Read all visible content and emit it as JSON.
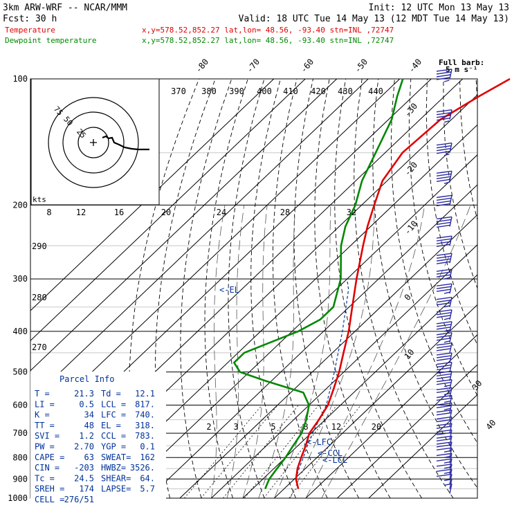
{
  "header": {
    "model": "3km ARW-WRF -- NCAR/MMM",
    "init": "Init: 12 UTC Mon 13 May 13",
    "fcst": "Fcst:    30 h",
    "valid": "Valid: 18 UTC Tue 14 May 13 (12 MDT Tue 14 May 13)",
    "temp_label": "Temperature",
    "dew_label": "Dewpoint temperature",
    "temp_loc": "x,y=578.52,852.27   lat,lon= 48.56, -93.40   stn=INL ,72747",
    "dew_loc": "x,y=578.52,852.27   lat,lon= 48.56, -93.40   stn=INL ,72747"
  },
  "colors": {
    "temperature": "#e00000",
    "dewpoint": "#008800",
    "parcel": "#003399",
    "wind": "#2a2aa0",
    "grid": "#000000"
  },
  "wind_scale": {
    "title": "Full barb:",
    "value": "5 m s⁻¹"
  },
  "hodograph": {
    "rings": [
      "75",
      "50",
      "25"
    ],
    "units": "kts",
    "origin_icon": "plus-icon"
  },
  "parcel_info": {
    "title": "Parcel Info",
    "rows": [
      {
        "a": "T   =",
        "av": "21.3",
        "b": "Td  =",
        "bv": "12.1"
      },
      {
        "a": "LI  =",
        "av": "0.5",
        "b": "LCL =",
        "bv": "817."
      },
      {
        "a": "K   =",
        "av": "34",
        "b": "LFC =",
        "bv": "740."
      },
      {
        "a": "TT  =",
        "av": "48",
        "b": "EL  =",
        "bv": "318."
      },
      {
        "a": "SVI =",
        "av": "1.2",
        "b": "CCL =",
        "bv": "783."
      },
      {
        "a": "PW  =",
        "av": "2.70",
        "b": "YGP =",
        "bv": "0.1"
      },
      {
        "a": "CAPE =",
        "av": "63",
        "b": "SWEAT=",
        "bv": "162"
      },
      {
        "a": "CIN =",
        "av": "-203",
        "b": "HWBZ=",
        "bv": "3526."
      },
      {
        "a": "Tc  =",
        "av": "24.5",
        "b": "SHEAR=",
        "bv": "64."
      },
      {
        "a": "SREH =",
        "av": "174",
        "b": "LAPSE=",
        "bv": "5.7"
      },
      {
        "a": "CELL =",
        "av": "276/51",
        "b": "",
        "bv": ""
      }
    ]
  },
  "level_labels": {
    "el": "<-EL",
    "lfc": "<-LFC",
    "ccl": "<-CCL",
    "lcl": "<-LCL"
  },
  "chart_data": {
    "type": "line",
    "chart_kind": "skew-T log-p sounding",
    "y_axis": {
      "label": "",
      "units": "hPa",
      "scale": "log",
      "range": [
        1000,
        100
      ],
      "ticks": [
        100,
        200,
        300,
        400,
        500,
        600,
        700,
        800,
        900,
        1000
      ]
    },
    "x_axis": {
      "label": "",
      "units": "°C",
      "skewed": true,
      "ticks": [
        -40,
        -30,
        -20,
        -10,
        0,
        10,
        20,
        30,
        40
      ]
    },
    "top_temp_ticks": [
      "-80",
      "-70",
      "-60",
      "-50",
      "-40"
    ],
    "theta_ticks": [
      "370",
      "380",
      "390",
      "400",
      "410",
      "420",
      "430",
      "440"
    ],
    "hodo_ticks": [
      "8",
      "12",
      "16",
      "20",
      "24",
      "28",
      "32"
    ],
    "mixing_ratio_ticks": [
      "2",
      "3",
      "5",
      "8",
      "12",
      "20"
    ],
    "theta_side_labels": [
      "290",
      "280",
      "270"
    ],
    "series": [
      {
        "name": "Temperature",
        "points": [
          [
            950,
            24.5
          ],
          [
            900,
            20.5
          ],
          [
            850,
            17.5
          ],
          [
            800,
            15
          ],
          [
            750,
            12.5
          ],
          [
            700,
            9.5
          ],
          [
            650,
            8
          ],
          [
            600,
            6
          ],
          [
            550,
            2.5
          ],
          [
            500,
            -1.5
          ],
          [
            450,
            -6.5
          ],
          [
            400,
            -12
          ],
          [
            350,
            -19
          ],
          [
            300,
            -27
          ],
          [
            250,
            -36
          ],
          [
            225,
            -41
          ],
          [
            200,
            -46
          ],
          [
            175,
            -51.5
          ],
          [
            150,
            -54.5
          ],
          [
            125,
            -53.5
          ],
          [
            110,
            -49
          ],
          [
            100,
            -45
          ]
        ]
      },
      {
        "name": "Dewpoint temperature",
        "points": [
          [
            950,
            14
          ],
          [
            925,
            13
          ],
          [
            900,
            12
          ],
          [
            850,
            11
          ],
          [
            800,
            10
          ],
          [
            750,
            8.5
          ],
          [
            700,
            7
          ],
          [
            650,
            4
          ],
          [
            600,
            0
          ],
          [
            560,
            -6
          ],
          [
            525,
            -22
          ],
          [
            500,
            -33
          ],
          [
            475,
            -38
          ],
          [
            450,
            -38
          ],
          [
            400,
            -28
          ],
          [
            375,
            -25
          ],
          [
            350,
            -25
          ],
          [
            300,
            -32
          ],
          [
            250,
            -43
          ],
          [
            225,
            -48
          ],
          [
            200,
            -52
          ],
          [
            175,
            -58
          ],
          [
            150,
            -63
          ],
          [
            125,
            -69
          ],
          [
            110,
            -75
          ],
          [
            100,
            -79
          ]
        ]
      },
      {
        "name": "Parcel",
        "points": [
          [
            950,
            24.5
          ],
          [
            900,
            20.5
          ],
          [
            850,
            18
          ],
          [
            817,
            16.5
          ],
          [
            740,
            12.5
          ],
          [
            700,
            10.5
          ],
          [
            600,
            5.5
          ],
          [
            500,
            -3
          ],
          [
            400,
            -14
          ],
          [
            318,
            -26
          ],
          [
            300,
            -30
          ]
        ]
      }
    ],
    "wind_barbs": [
      [
        975,
        5
      ],
      [
        950,
        5
      ],
      [
        925,
        10
      ],
      [
        900,
        15
      ],
      [
        875,
        15
      ],
      [
        850,
        15
      ],
      [
        825,
        15
      ],
      [
        800,
        15
      ],
      [
        775,
        20
      ],
      [
        750,
        20
      ],
      [
        725,
        20
      ],
      [
        700,
        20
      ],
      [
        675,
        20
      ],
      [
        650,
        20
      ],
      [
        625,
        25
      ],
      [
        600,
        25
      ],
      [
        575,
        25
      ],
      [
        550,
        25
      ],
      [
        525,
        30
      ],
      [
        500,
        30
      ],
      [
        475,
        30
      ],
      [
        450,
        30
      ],
      [
        425,
        35
      ],
      [
        400,
        35
      ],
      [
        375,
        35
      ],
      [
        350,
        35
      ],
      [
        325,
        35
      ],
      [
        300,
        35
      ],
      [
        275,
        40
      ],
      [
        250,
        40
      ],
      [
        225,
        40
      ],
      [
        200,
        40
      ],
      [
        175,
        45
      ],
      [
        150,
        45
      ],
      [
        125,
        45
      ],
      [
        100,
        45
      ]
    ]
  }
}
